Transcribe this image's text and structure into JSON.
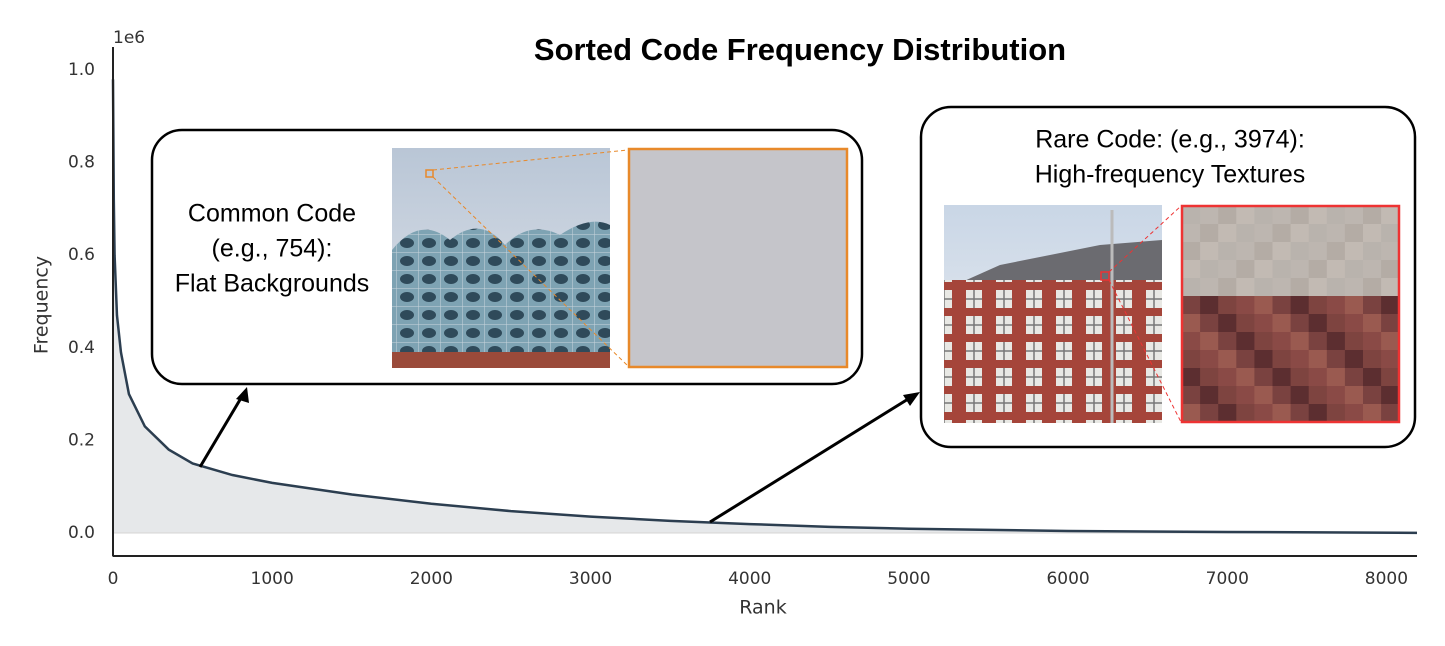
{
  "chart_data": {
    "type": "area-line",
    "title": "Sorted Code Frequency Distribution",
    "x_label": "Rank",
    "y_label": "Frequency",
    "y_offset_label": "1e6",
    "x": [
      0,
      5,
      10,
      25,
      50,
      100,
      200,
      350,
      500,
      750,
      1000,
      1500,
      2000,
      2500,
      3000,
      3500,
      4000,
      4500,
      5000,
      6000,
      7000,
      8192
    ],
    "values": [
      0.98,
      0.72,
      0.6,
      0.47,
      0.39,
      0.3,
      0.23,
      0.18,
      0.15,
      0.125,
      0.108,
      0.083,
      0.063,
      0.047,
      0.035,
      0.026,
      0.019,
      0.013,
      0.009,
      0.004,
      0.002,
      0.0
    ],
    "color": "#2c3e50",
    "fill_color": "#e6e8ea",
    "xlim": [
      0,
      8192
    ],
    "ylim": [
      -0.05,
      1.05
    ],
    "xticks": [
      0,
      1000,
      2000,
      3000,
      4000,
      5000,
      6000,
      7000,
      8000
    ],
    "yticks": [
      {
        "value": 0,
        "label": "0.0"
      },
      0.2,
      0.4,
      0.6,
      0.8,
      {
        "value": 1,
        "label": "1.0"
      }
    ],
    "annotations": [
      {
        "lines": [
          "Common Code",
          "(e.g., 754):",
          "Flat Backgrounds"
        ]
      },
      {
        "lines": [
          "Rare Code: (e.g., 3974):",
          "High-frequency Textures"
        ]
      }
    ]
  }
}
